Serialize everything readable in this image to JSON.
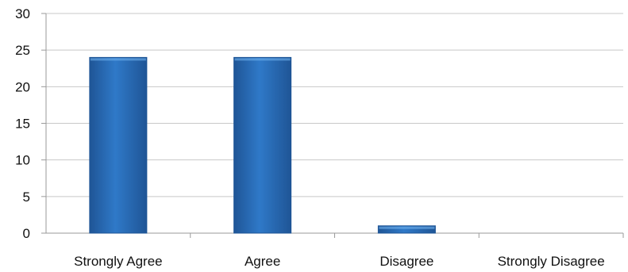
{
  "chart_data": {
    "type": "bar",
    "categories": [
      "Strongly Agree",
      "Agree",
      "Disagree",
      "Strongly Disagree"
    ],
    "values": [
      24,
      24,
      1,
      0
    ],
    "title": "",
    "xlabel": "",
    "ylabel": "",
    "ylim": [
      0,
      30
    ],
    "yticks": [
      0,
      5,
      10,
      15,
      20,
      25,
      30
    ],
    "grid": true,
    "legend": "none",
    "colors": {
      "bar": "#2f79c8",
      "bar_light": "#6fb0ec",
      "bar_dark": "#1f5596",
      "grid": "#c8c8c8",
      "axis": "#9a9a9a"
    }
  }
}
